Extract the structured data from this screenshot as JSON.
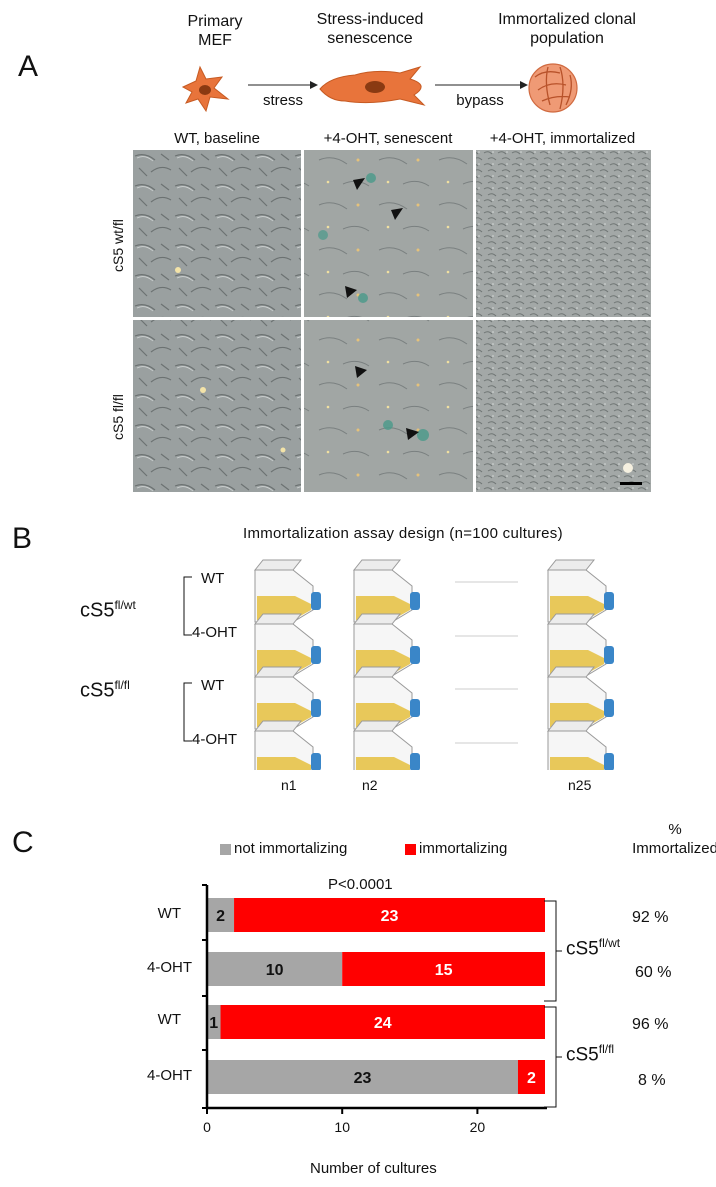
{
  "panel_a": {
    "letter": "A",
    "stages": [
      {
        "line1": "Primary",
        "line2": "MEF"
      },
      {
        "line1": "Stress-induced",
        "line2": "senescence"
      },
      {
        "line1": "Immortalized clonal",
        "line2": "population"
      }
    ],
    "arrows": [
      "stress",
      "bypass"
    ],
    "columns": [
      "WT, baseline",
      "+4-OHT, senescent",
      "+4-OHT, immortalized"
    ],
    "rows": [
      "cS5 wt/fl",
      "cS5 fl/fl"
    ],
    "colors": {
      "cell_orange": "#e8743b",
      "micro_gray": "#9aa0a0",
      "stain_teal": "#4a9a8a"
    }
  },
  "panel_b": {
    "letter": "B",
    "title": "Immortalization  assay design  (n=100 cultures)",
    "groups": [
      {
        "label": "cS5",
        "sup": "fl/wt"
      },
      {
        "label": "cS5",
        "sup": "fl/fl"
      }
    ],
    "conditions": [
      "WT",
      "4-OHT",
      "WT",
      "4-OHT"
    ],
    "n_labels": [
      "n1",
      "n2",
      "n25"
    ],
    "colors": {
      "liquid": "#e8c85a",
      "cap": "#3a86c8"
    }
  },
  "panel_c": {
    "letter": "C",
    "pct_header_line1": "%",
    "pct_header_line2": "Immortalized",
    "brackets": [
      {
        "label": "cS5",
        "sup": "fl/wt"
      },
      {
        "label": "cS5",
        "sup": "fl/fl"
      }
    ],
    "percentages": [
      "92 %",
      "60 %",
      "96 %",
      "8 %"
    ]
  },
  "chart_data": {
    "type": "bar",
    "orientation": "horizontal",
    "stacked": true,
    "categories": [
      "WT",
      "4-OHT",
      "WT",
      "4-OHT"
    ],
    "series": [
      {
        "name": "not immortalizing",
        "color": "#a6a6a6",
        "values": [
          2,
          10,
          1,
          23
        ],
        "label_color": "#111111"
      },
      {
        "name": "immortalizing",
        "color": "#ff0000",
        "values": [
          23,
          15,
          24,
          2
        ],
        "label_color": "#ffffff"
      }
    ],
    "xlabel": "Number of cultures",
    "xlim": [
      0,
      25
    ],
    "xticks": [
      0,
      10,
      20
    ],
    "annotation": "P<0.0001",
    "legend_position": "top",
    "grid": false
  }
}
